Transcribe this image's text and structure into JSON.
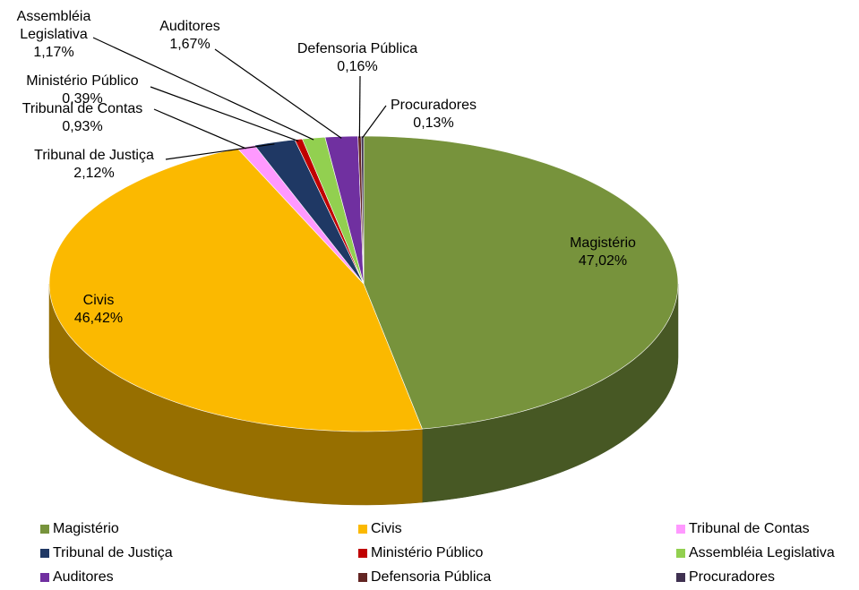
{
  "chart_data": {
    "type": "pie3d",
    "categories": [
      "Magistério",
      "Civis",
      "Tribunal de Contas",
      "Tribunal de Justiça",
      "Ministério Público",
      "Assembléia Legislativa",
      "Auditores",
      "Defensoria Pública",
      "Procuradores"
    ],
    "values": [
      47.02,
      46.42,
      0.93,
      2.12,
      0.39,
      1.17,
      1.67,
      0.16,
      0.13
    ],
    "value_labels": [
      "47,02%",
      "46,42%",
      "0,93%",
      "2,12%",
      "0,39%",
      "1,17%",
      "1,67%",
      "0,16%",
      "0,13%"
    ],
    "colors": [
      "#77933c",
      "#fbb900",
      "#ff99ff",
      "#1f3864",
      "#c00000",
      "#92d050",
      "#7030a0",
      "#632523",
      "#3f3151"
    ],
    "legend": "bottom"
  }
}
